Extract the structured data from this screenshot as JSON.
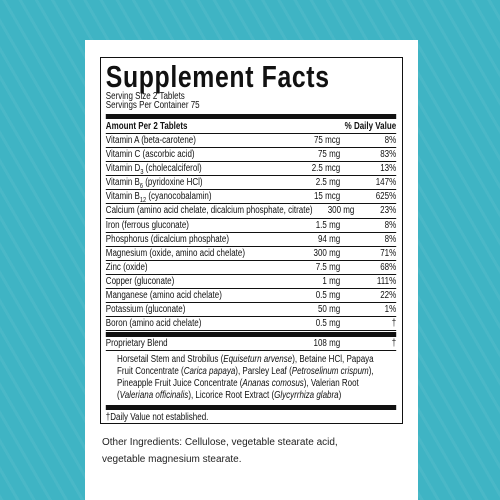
{
  "label": {
    "title": "Supplement Facts",
    "serving_size": "Serving Size 2 Tablets",
    "servings_per_container": "Servings Per Container 75",
    "header": {
      "amount": "Amount Per 2 Tablets",
      "dv": "% Daily Value"
    },
    "rows": [
      {
        "name": [
          "Vitamin A (beta-carotene)"
        ],
        "amount": "75 mcg",
        "dv": "8%"
      },
      {
        "name": [
          "Vitamin C (ascorbic acid)"
        ],
        "amount": "75 mg",
        "dv": "83%"
      },
      {
        "name": [
          "Vitamin D",
          {
            "sub": "3"
          },
          " (cholecalciferol)"
        ],
        "amount": "2.5 mcg",
        "dv": "13%"
      },
      {
        "name": [
          "Vitamin B",
          {
            "sub": "6"
          },
          " (pyridoxine HCl)"
        ],
        "amount": "2.5 mg",
        "dv": "147%"
      },
      {
        "name": [
          "Vitamin B",
          {
            "sub": "12"
          },
          " (cyanocobalamin)"
        ],
        "amount": "15 mcg",
        "dv": "625%"
      },
      {
        "name": [
          "Calcium (amino acid chelate, dicalcium phosphate, citrate)"
        ],
        "amount": "300 mg",
        "dv": "23%"
      },
      {
        "name": [
          "Iron (ferrous gluconate)"
        ],
        "amount": "1.5 mg",
        "dv": "8%"
      },
      {
        "name": [
          "Phosphorus (dicalcium phosphate)"
        ],
        "amount": "94 mg",
        "dv": "8%"
      },
      {
        "name": [
          "Magnesium (oxide, amino acid chelate)"
        ],
        "amount": "300 mg",
        "dv": "71%"
      },
      {
        "name": [
          "Zinc (oxide)"
        ],
        "amount": "7.5 mg",
        "dv": "68%"
      },
      {
        "name": [
          "Copper (gluconate)"
        ],
        "amount": "1 mg",
        "dv": "111%"
      },
      {
        "name": [
          "Manganese (amino acid chelate)"
        ],
        "amount": "0.5 mg",
        "dv": "22%"
      },
      {
        "name": [
          "Potassium (gluconate)"
        ],
        "amount": "50 mg",
        "dv": "1%"
      },
      {
        "name": [
          "Boron (amino acid chelate)"
        ],
        "amount": "0.5 mg",
        "dv": "†"
      }
    ],
    "blend": {
      "name": "Proprietary Blend",
      "amount": "108 mg",
      "dv": "†",
      "description": [
        "Horsetail Stem and Strobilus (",
        {
          "i": "Equiseturn arvense"
        },
        "), Betaine HCl, Papaya Fruit Concentrate (",
        {
          "i": "Carica papaya"
        },
        "), Parsley Leaf (",
        {
          "i": "Petroselinum crispum"
        },
        "), Pineapple Fruit Juice Concentrate (",
        {
          "i": "Ananas comosus"
        },
        "), Valerian Root (",
        {
          "i": "Valeriana officinalis"
        },
        "), Licorice Root Extract (",
        {
          "i": "Glycyrrhiza glabra"
        },
        ")"
      ]
    },
    "footnote": "†Daily Value not established."
  },
  "other_ingredients": "Other Ingredients: Cellulose, vegetable stearate acid, vegetable magnesium stearate."
}
